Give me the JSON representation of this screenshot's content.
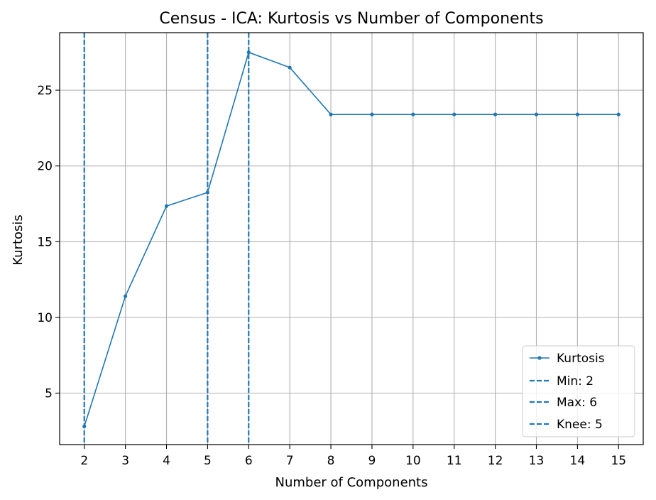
{
  "chart_data": {
    "type": "line",
    "title": "Census - ICA: Kurtosis vs Number of Components",
    "xlabel": "Number of Components",
    "ylabel": "Kurtosis",
    "x": [
      2,
      3,
      4,
      5,
      6,
      7,
      8,
      9,
      10,
      11,
      12,
      13,
      14,
      15
    ],
    "xlim": [
      1.4,
      15.6
    ],
    "ylim": [
      1.6,
      28.8
    ],
    "xticks": [
      "2",
      "3",
      "4",
      "5",
      "6",
      "7",
      "8",
      "9",
      "10",
      "11",
      "12",
      "13",
      "14",
      "15"
    ],
    "yticks": [
      "5",
      "10",
      "15",
      "20",
      "25"
    ],
    "grid": true,
    "legend_position": "lower-right",
    "series": [
      {
        "name": "Kurtosis",
        "color": "#1f77b4",
        "values": [
          2.8,
          11.4,
          17.35,
          18.25,
          27.5,
          26.5,
          23.4,
          23.4,
          23.4,
          23.4,
          23.4,
          23.4,
          23.4,
          23.4
        ]
      }
    ],
    "vlines": [
      {
        "name": "Min: 2",
        "x": 2,
        "color": "#1f77b4"
      },
      {
        "name": "Max: 6",
        "x": 6,
        "color": "#1f77b4"
      },
      {
        "name": "Knee: 5",
        "x": 5,
        "color": "#1f77b4"
      }
    ]
  }
}
